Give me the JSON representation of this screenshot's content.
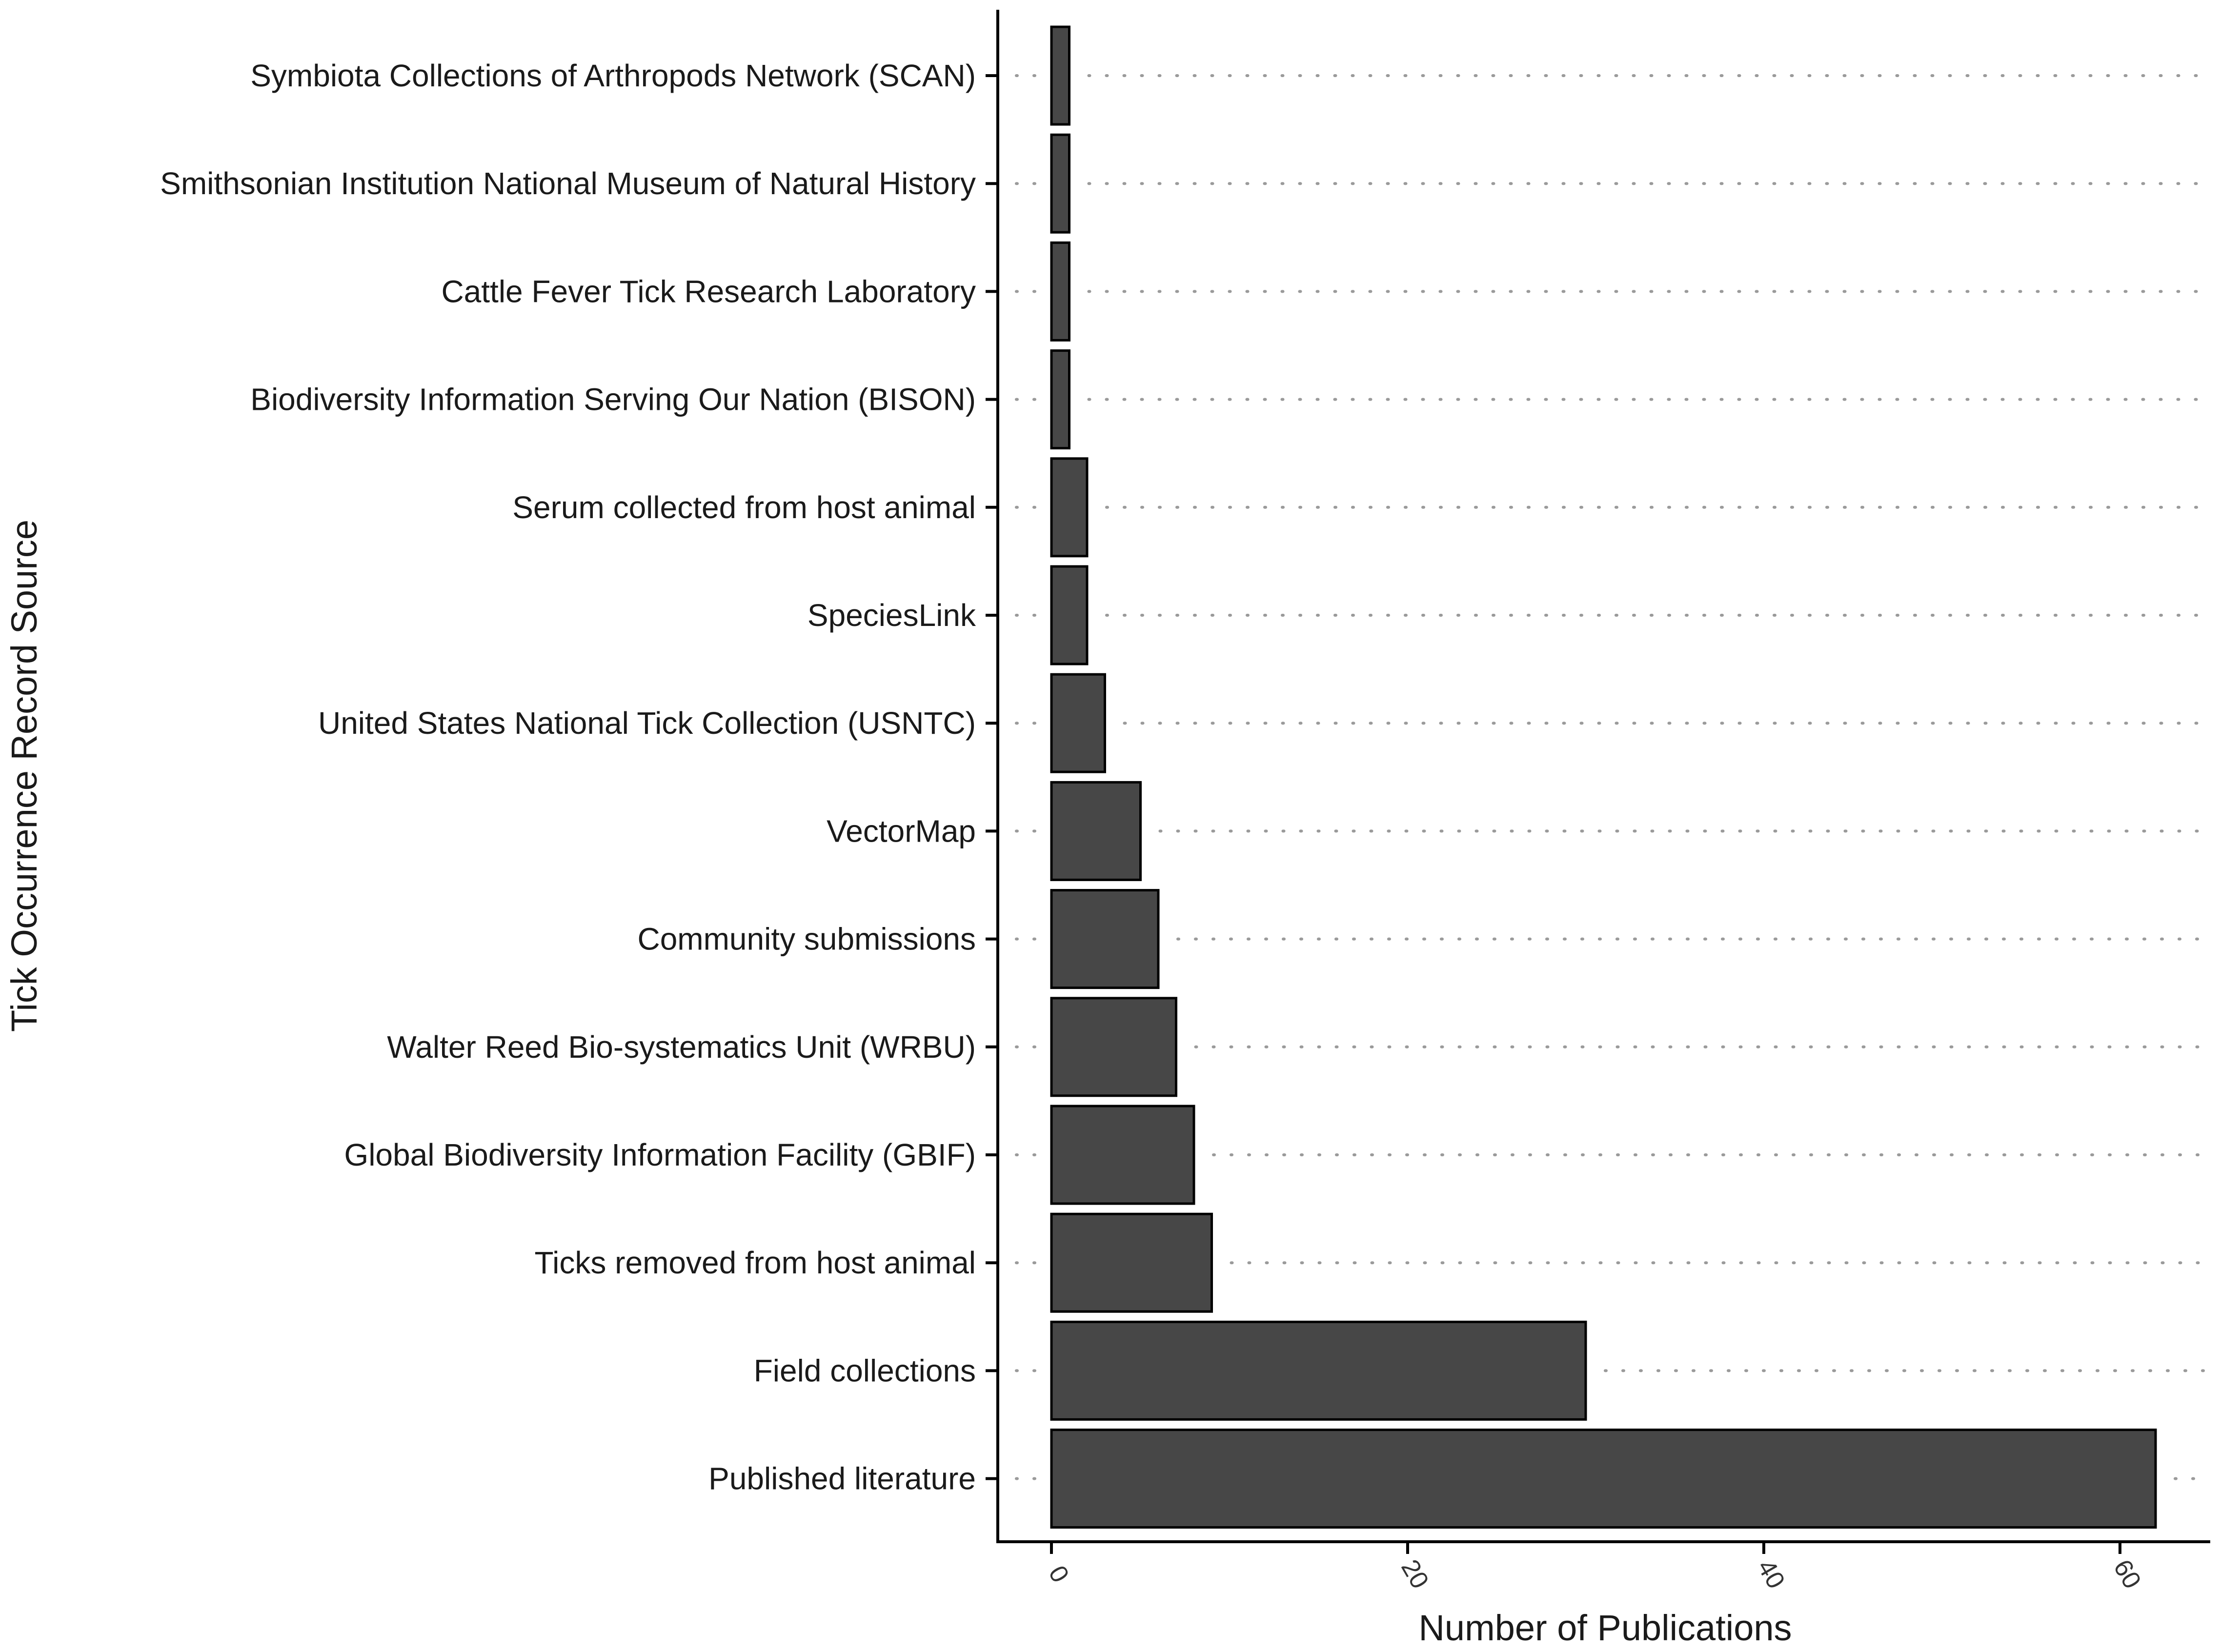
{
  "chart_data": {
    "type": "bar",
    "orientation": "horizontal",
    "title": "",
    "xlabel": "Number of Publications",
    "ylabel": "Tick Occurrence Record Source",
    "xlim": [
      0,
      63
    ],
    "xticks": [
      0,
      20,
      40,
      60
    ],
    "grid": "dotted horizontal guide lines per category",
    "legend": "none",
    "colors": {
      "bar_fill": "#474747",
      "bar_stroke": "#000000",
      "grid": "#9a9a9a",
      "axis": "#000000"
    },
    "categories": [
      "Symbiota Collections of Arthropods Network (SCAN)",
      "Smithsonian Institution National Museum of Natural History",
      "Cattle Fever Tick Research Laboratory",
      "Biodiversity Information Serving Our Nation (BISON)",
      "Serum collected from host animal",
      "SpeciesLink",
      "United States National Tick Collection (USNTC)",
      "VectorMap",
      "Community submissions",
      "Walter Reed Bio-systematics Unit (WRBU)",
      "Global Biodiversity Information Facility (GBIF)",
      "Ticks removed from host animal",
      "Field collections",
      "Published literature"
    ],
    "values": [
      1,
      1,
      1,
      1,
      2,
      2,
      3,
      5,
      6,
      7,
      8,
      9,
      30,
      62
    ]
  }
}
